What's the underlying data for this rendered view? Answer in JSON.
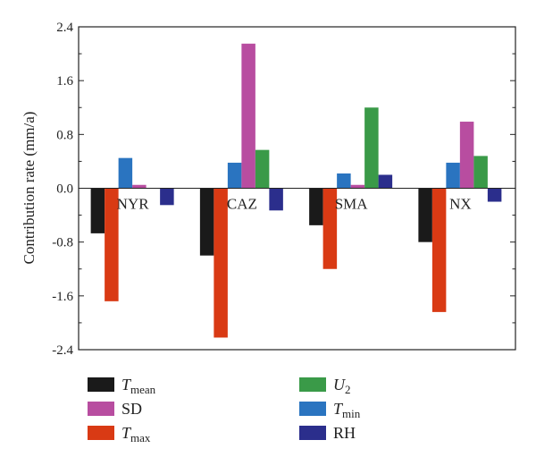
{
  "chart_data": {
    "type": "bar",
    "title": "",
    "xlabel": "",
    "ylabel": "Contribution rate (mm/a)",
    "ylim": [
      -2.4,
      2.4
    ],
    "yticks": [
      "2.4",
      "1.6",
      "0.8",
      "0.0",
      "-0.8",
      "-1.6",
      "-2.4"
    ],
    "grid": false,
    "legend_position": "bottom",
    "categories": [
      "NYR",
      "CAZ",
      "SMA",
      "NX"
    ],
    "series": [
      {
        "name": "T_mean",
        "label_main": "T",
        "label_sub": "mean",
        "color": "#1a1a1a",
        "values": [
          -0.67,
          -1.0,
          -0.55,
          -0.8
        ]
      },
      {
        "name": "T_max",
        "label_main": "T",
        "label_sub": "max",
        "color": "#d93a14",
        "values": [
          -1.68,
          -2.22,
          -1.2,
          -1.84
        ]
      },
      {
        "name": "T_min",
        "label_main": "T",
        "label_sub": "min",
        "color": "#2a74c0",
        "values": [
          0.45,
          0.38,
          0.22,
          0.38
        ]
      },
      {
        "name": "SD",
        "label_main": "SD",
        "label_sub": "",
        "color": "#b84da0",
        "values": [
          0.05,
          2.15,
          0.05,
          0.99
        ]
      },
      {
        "name": "U_2",
        "label_main": "U",
        "label_sub": "2",
        "color": "#3a9a48",
        "values": [
          0.0,
          0.57,
          1.2,
          0.48
        ]
      },
      {
        "name": "RH",
        "label_main": "RH",
        "label_sub": "",
        "color": "#2b2e8c",
        "values": [
          -0.25,
          -0.33,
          0.2,
          -0.2
        ]
      }
    ],
    "legend_order": [
      "T_mean",
      "U_2",
      "SD",
      "T_min",
      "T_max",
      "RH"
    ]
  }
}
